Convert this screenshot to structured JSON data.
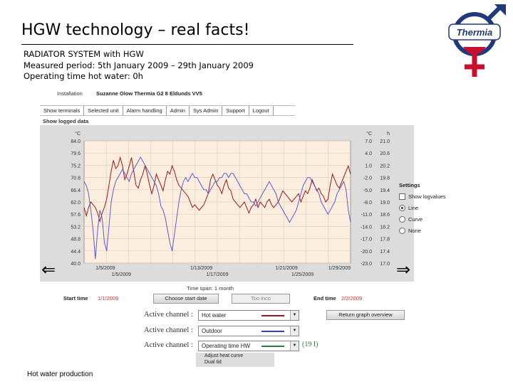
{
  "slide": {
    "title": "HGW technology – real facts!",
    "logo_text": "Thermia",
    "info": {
      "line1": "RADIATOR SYSTEM with HGW",
      "line2": "Measured period: 5th January 2009 – 29th January 2009",
      "line3": "Operating time hot water: 0h"
    },
    "caption": "Hot water production"
  },
  "app": {
    "installation_label": "Installation",
    "installation_value": "Suzanne Olow Thermia G2 8 Eldunds VV5",
    "menu": [
      "Show terminals",
      "Selected unit",
      "Alarm handling",
      "Admin",
      "Sys Admin",
      "Support",
      "Logout"
    ],
    "show_logged_data": "Show logged data",
    "settings": {
      "title": "Settings",
      "show_logvalues": "Show logvalues",
      "line": "Line",
      "curve": "Curve",
      "none": "None",
      "selected": "Line"
    },
    "timespan": "Time span: 1 month",
    "start_label": "Start time",
    "start_value": "1/1/2009",
    "choose_start_button": "Choose start date",
    "today_button": "Too inco",
    "end_label": "End time",
    "end_value": "2/2/2009",
    "channel_label": "Active channel :",
    "channels": [
      {
        "name": "Hot water",
        "color": "#9b1a1a"
      },
      {
        "name": "Outdoor",
        "color": "#3a3ad0"
      },
      {
        "name": "Operating time HW",
        "color": "#2e7d32"
      }
    ],
    "overview_button": "Return graph overview",
    "channel_count": "(19 I)",
    "dropdown_options": [
      "Adjust heat curve",
      "Dual tid"
    ],
    "nav_left": "⇐",
    "nav_right": "⇒"
  },
  "chart_data": {
    "type": "line",
    "ylim_left": [
      40.0,
      84.0
    ],
    "ylim_right_1": [
      -23.0,
      7.0
    ],
    "ylim_right_2": [
      17.0,
      21.0
    ],
    "left_ticks": [
      "84.0",
      "79.6",
      "75.2",
      "70.8",
      "66.4",
      "62.0",
      "57.6",
      "53.2",
      "48.8",
      "44.4",
      "40.0"
    ],
    "right_ticks_1": [
      "7.0",
      "4.0",
      "1.0",
      "-2.0",
      "-5.0",
      "-8.0",
      "-11.0",
      "-14.0",
      "-17.0",
      "-20.0",
      "-23.0"
    ],
    "right_ticks_2": [
      "21.0",
      "20.6",
      "20.2",
      "19.8",
      "19.4",
      "19.0",
      "18.6",
      "18.2",
      "17.8",
      "17.4",
      "17.0"
    ],
    "left_unit": "°C",
    "right_units": [
      "°C",
      "h"
    ],
    "x_ticks_top": [
      "1/5/2009",
      "1/13/2009",
      "1/21/2009",
      "1/29/2009"
    ],
    "x_ticks_bottom": [
      "1/5/2009",
      "1/17/2009",
      "1/25/2009"
    ],
    "grid": true,
    "series": [
      {
        "name": "Hot water",
        "color": "#9b1a1a",
        "axis": "left",
        "values": [
          60,
          57,
          60,
          62,
          61,
          60,
          58,
          55,
          58,
          60,
          63,
          68,
          73,
          77,
          74,
          75,
          78,
          75,
          70,
          72,
          75,
          78,
          73,
          68,
          67,
          70,
          72,
          75,
          72,
          68,
          65,
          68,
          72,
          70,
          68,
          66,
          70,
          73,
          72,
          75,
          73,
          70,
          68,
          67,
          66,
          65,
          64,
          62,
          60,
          61,
          60,
          59,
          60,
          61,
          63,
          65,
          70,
          72,
          70,
          68,
          67,
          65,
          68,
          70,
          67,
          66,
          63,
          62,
          61,
          60,
          61,
          62,
          60,
          58,
          60,
          61,
          63,
          60,
          62,
          61,
          60,
          62,
          63,
          61,
          60,
          61,
          62,
          64,
          66,
          65,
          64,
          63,
          62,
          63,
          64,
          65,
          62,
          64,
          66,
          65,
          67,
          70,
          68,
          66,
          67,
          65,
          64,
          62,
          63,
          68,
          72,
          70,
          68,
          67,
          69,
          71,
          73,
          75,
          72
        ]
      },
      {
        "name": "Outdoor",
        "color": "#5b5bd6",
        "axis": "right_1",
        "values": [
          -3,
          -4,
          -6,
          -10,
          -15,
          -22,
          -15,
          -10,
          -12,
          -18,
          -20,
          -14,
          -8,
          -5,
          -3,
          -2,
          -1,
          0,
          -1,
          -2,
          -3,
          -1,
          0,
          1,
          2,
          3,
          2,
          1,
          0,
          -1,
          -2,
          -3,
          -4,
          -6,
          -9,
          -10,
          -12,
          -15,
          -18,
          -20,
          -16,
          -12,
          -8,
          -5,
          -3,
          -2,
          -3,
          -2,
          -1,
          -2,
          -2,
          -3,
          -4,
          -5,
          -5,
          -6,
          -5,
          -4,
          -3,
          -3,
          -2,
          -2,
          -1,
          -1,
          -2,
          -1,
          -1,
          -2,
          -3,
          -4,
          -5,
          -6,
          -6,
          -7,
          -8,
          -8,
          -9,
          -8,
          -7,
          -6,
          -5,
          -4,
          -3,
          -4,
          -5,
          -6,
          -8,
          -9,
          -10,
          -11,
          -12,
          -13,
          -12,
          -11,
          -10,
          -8,
          -6,
          -4,
          -3,
          -2,
          -2,
          -3,
          -4,
          -5,
          -6,
          -8,
          -9,
          -10,
          -11,
          -10,
          -9,
          -8,
          -6,
          -5,
          -4,
          -3,
          -5,
          -10,
          -13
        ]
      }
    ]
  }
}
